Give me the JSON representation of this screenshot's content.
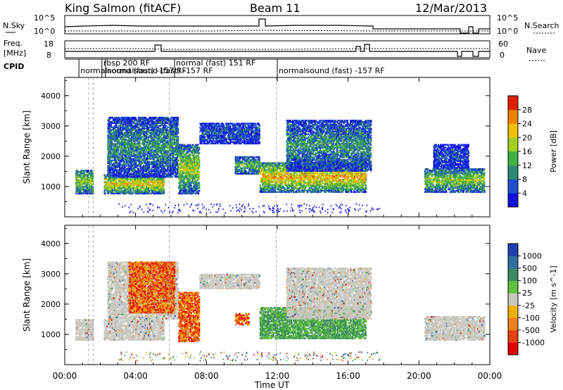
{
  "header": {
    "station": "King Salmon (fitACF)",
    "beam": "Beam 11",
    "date": "12/Mar/2013"
  },
  "top_panels": {
    "nsky_label": "N.Sky",
    "nsky_ticks": [
      "10^5",
      "10^0"
    ],
    "nsearch_label": "N.Search",
    "nsearch_ticks": [
      "10^5",
      "10^0"
    ],
    "freq_label": "Freq.",
    "freq_unit": "[MHz]",
    "freq_ticks": [
      "18",
      "8"
    ],
    "nave_label": "Nave",
    "nave_ticks": [
      "60",
      "0"
    ],
    "cpid_label": "CPID",
    "cpid_segments": [
      {
        "text": "normalsound (fast) -157 RF",
        "row": 1,
        "start": 0.8
      },
      {
        "text": "rbsp 200 RF",
        "row": 0,
        "start": 2.1
      },
      {
        "text": "normalsound (fast) -157 RF",
        "row": 1,
        "start": 2.3
      },
      {
        "text": "normal (fast) 151 RF",
        "row": 0,
        "start": 6.2
      },
      {
        "text": "normalsound (fast) -157 RF",
        "row": 1,
        "start": 12.0
      }
    ]
  },
  "time_axis": {
    "label": "Time UT",
    "ticks": [
      "00:00",
      "04:00",
      "08:00",
      "12:00",
      "16:00",
      "20:00",
      "00:00"
    ]
  },
  "chart_data": [
    {
      "type": "heatmap",
      "name": "Power",
      "ylabel": "Slant Range [km]",
      "xlabel": "",
      "xlim": [
        0,
        24
      ],
      "ylim": [
        0,
        4600
      ],
      "yticks": [
        "1000",
        "2000",
        "3000",
        "4000"
      ],
      "colorbar": {
        "label": "Power [dB]",
        "ticks": [
          "4",
          "8",
          "12",
          "16",
          "20",
          "24",
          "28"
        ],
        "colors": [
          "#1010e0",
          "#2050d0",
          "#2d8a6e",
          "#40b040",
          "#a0d020",
          "#f0c000",
          "#f08000",
          "#e02000"
        ]
      },
      "regions": [
        {
          "t0": 0.6,
          "t1": 1.6,
          "r0": 750,
          "r1": 1550,
          "intensity": 0.55
        },
        {
          "t0": 2.2,
          "t1": 5.6,
          "r0": 750,
          "r1": 1400,
          "intensity": 0.7
        },
        {
          "t0": 2.4,
          "t1": 6.4,
          "r0": 1300,
          "r1": 3300,
          "intensity": 0.35
        },
        {
          "t0": 6.4,
          "t1": 7.6,
          "r0": 750,
          "r1": 2400,
          "intensity": 0.6
        },
        {
          "t0": 7.6,
          "t1": 11.0,
          "r0": 2400,
          "r1": 3100,
          "intensity": 0.2
        },
        {
          "t0": 9.6,
          "t1": 11.0,
          "r0": 1400,
          "r1": 2000,
          "intensity": 0.45
        },
        {
          "t0": 11.0,
          "t1": 17.0,
          "r0": 800,
          "r1": 1800,
          "intensity": 0.75
        },
        {
          "t0": 12.5,
          "t1": 17.3,
          "r0": 1500,
          "r1": 3200,
          "intensity": 0.35
        },
        {
          "t0": 20.3,
          "t1": 23.7,
          "r0": 800,
          "r1": 1600,
          "intensity": 0.55
        },
        {
          "t0": 20.8,
          "t1": 22.8,
          "r0": 1600,
          "r1": 2400,
          "intensity": 0.15
        }
      ]
    },
    {
      "type": "heatmap",
      "name": "Velocity",
      "ylabel": "Slant Range [km]",
      "xlabel": "Time UT",
      "xlim": [
        0,
        24
      ],
      "ylim": [
        0,
        4600
      ],
      "yticks": [
        "1000",
        "2000",
        "3000",
        "4000"
      ],
      "colorbar": {
        "label": "Velocity [m s^-1]",
        "ticks": [
          "1000",
          "500",
          "100",
          "25",
          "-25",
          "-100",
          "-500",
          "-1000"
        ],
        "colors": [
          "#2040b0",
          "#3070a0",
          "#3c8a60",
          "#60c040",
          "#c8c8c0",
          "#f0b000",
          "#f08020",
          "#e84010",
          "#e00000"
        ]
      },
      "regions": [
        {
          "t0": 0.6,
          "t1": 1.6,
          "r0": 800,
          "r1": 1500,
          "vel": 0
        },
        {
          "t0": 2.2,
          "t1": 5.6,
          "r0": 800,
          "r1": 1500,
          "vel": 0
        },
        {
          "t0": 2.4,
          "t1": 6.4,
          "r0": 1500,
          "r1": 3400,
          "vel": 0
        },
        {
          "t0": 3.6,
          "t1": 6.2,
          "r0": 1700,
          "r1": 3400,
          "vel": -1
        },
        {
          "t0": 6.4,
          "t1": 7.6,
          "r0": 750,
          "r1": 2400,
          "vel": -1
        },
        {
          "t0": 7.6,
          "t1": 11.0,
          "r0": 2500,
          "r1": 3000,
          "vel": 0
        },
        {
          "t0": 9.6,
          "t1": 10.4,
          "r0": 1300,
          "r1": 1700,
          "vel": -1
        },
        {
          "t0": 11.0,
          "t1": 17.0,
          "r0": 850,
          "r1": 1900,
          "vel": 1
        },
        {
          "t0": 12.5,
          "t1": 17.3,
          "r0": 1500,
          "r1": 3200,
          "vel": 0
        },
        {
          "t0": 20.3,
          "t1": 23.7,
          "r0": 800,
          "r1": 1600,
          "vel": 0
        }
      ]
    }
  ],
  "colors": {
    "background": "#ffffff",
    "axis": "#000000",
    "ground_scatter": "#c8c8c0"
  }
}
